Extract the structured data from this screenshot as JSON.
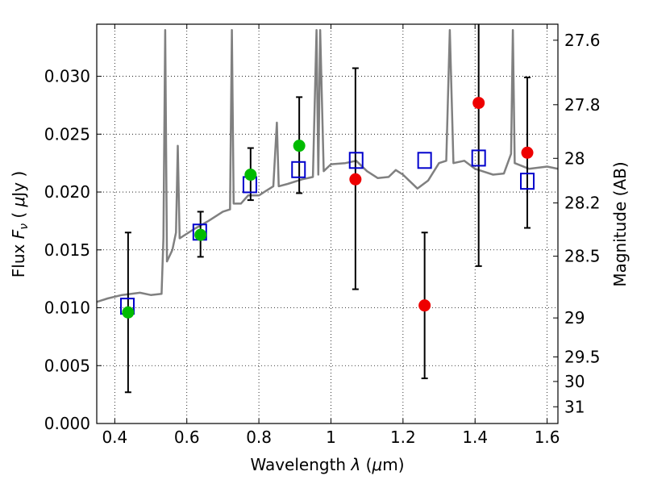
{
  "chart_data": {
    "type": "scatter",
    "xlabel": "Wavelength  λ (μm)",
    "ylabel_left": "Flux  F_ν  ( μJy )",
    "ylabel_right": "Magnitude (AB)",
    "xlim": [
      0.35,
      1.63
    ],
    "ylim": [
      0.0,
      0.0345
    ],
    "grid": true,
    "x_ticks": [
      0.4,
      0.6,
      0.8,
      1.0,
      1.2,
      1.4,
      1.6
    ],
    "x_tick_labels": [
      "0.4",
      "0.6",
      "0.8",
      "1",
      "1.2",
      "1.4",
      "1.6"
    ],
    "y_ticks": [
      0.0,
      0.005,
      0.01,
      0.015,
      0.02,
      0.025,
      0.03
    ],
    "y_tick_labels": [
      "0.000",
      "0.005",
      "0.010",
      "0.015",
      "0.020",
      "0.025",
      "0.030"
    ],
    "right_ticks": [
      {
        "label": "27.6",
        "mag": 27.6
      },
      {
        "label": "27.8",
        "mag": 27.8
      },
      {
        "label": "28",
        "mag": 28.0
      },
      {
        "label": "28.2",
        "mag": 28.2
      },
      {
        "label": "28.5",
        "mag": 28.5
      },
      {
        "label": "29",
        "mag": 29.0
      },
      {
        "label": "29.5",
        "mag": 29.5
      },
      {
        "label": "30",
        "mag": 30.0
      },
      {
        "label": "31",
        "mag": 31.0
      }
    ],
    "colors": {
      "sed": "#808080",
      "model": "#0000cc",
      "optical": "#00bb00",
      "nir": "#ee0000",
      "errorbar": "#000000"
    },
    "model_sed": [
      [
        0.35,
        0.0105
      ],
      [
        0.38,
        0.0108
      ],
      [
        0.42,
        0.0111
      ],
      [
        0.47,
        0.0113
      ],
      [
        0.5,
        0.0111
      ],
      [
        0.53,
        0.0112
      ],
      [
        0.535,
        0.016
      ],
      [
        0.54,
        0.034
      ],
      [
        0.545,
        0.014
      ],
      [
        0.56,
        0.015
      ],
      [
        0.57,
        0.0165
      ],
      [
        0.575,
        0.024
      ],
      [
        0.58,
        0.016
      ],
      [
        0.62,
        0.0168
      ],
      [
        0.66,
        0.0175
      ],
      [
        0.7,
        0.0183
      ],
      [
        0.72,
        0.0185
      ],
      [
        0.725,
        0.034
      ],
      [
        0.73,
        0.019
      ],
      [
        0.75,
        0.019
      ],
      [
        0.77,
        0.0197
      ],
      [
        0.8,
        0.0197
      ],
      [
        0.82,
        0.0201
      ],
      [
        0.84,
        0.0205
      ],
      [
        0.85,
        0.026
      ],
      [
        0.855,
        0.0205
      ],
      [
        0.88,
        0.0207
      ],
      [
        0.92,
        0.0211
      ],
      [
        0.95,
        0.0213
      ],
      [
        0.96,
        0.034
      ],
      [
        0.965,
        0.0215
      ],
      [
        0.97,
        0.034
      ],
      [
        0.98,
        0.0218
      ],
      [
        1.0,
        0.0224
      ],
      [
        1.04,
        0.0225
      ],
      [
        1.07,
        0.0227
      ],
      [
        1.1,
        0.0218
      ],
      [
        1.13,
        0.0212
      ],
      [
        1.16,
        0.0213
      ],
      [
        1.18,
        0.0219
      ],
      [
        1.2,
        0.0215
      ],
      [
        1.24,
        0.0203
      ],
      [
        1.27,
        0.021
      ],
      [
        1.3,
        0.0225
      ],
      [
        1.32,
        0.0227
      ],
      [
        1.33,
        0.034
      ],
      [
        1.34,
        0.0225
      ],
      [
        1.37,
        0.0227
      ],
      [
        1.4,
        0.022
      ],
      [
        1.42,
        0.0218
      ],
      [
        1.45,
        0.0215
      ],
      [
        1.48,
        0.0216
      ],
      [
        1.5,
        0.0233
      ],
      [
        1.505,
        0.034
      ],
      [
        1.51,
        0.0225
      ],
      [
        1.55,
        0.022
      ],
      [
        1.6,
        0.0222
      ],
      [
        1.63,
        0.022
      ]
    ],
    "model_points": [
      {
        "x": 0.435,
        "y": 0.0101
      },
      {
        "x": 0.636,
        "y": 0.0165
      },
      {
        "x": 0.775,
        "y": 0.0206
      },
      {
        "x": 0.91,
        "y": 0.0219
      },
      {
        "x": 1.07,
        "y": 0.0227
      },
      {
        "x": 1.26,
        "y": 0.0227
      },
      {
        "x": 1.41,
        "y": 0.0229
      },
      {
        "x": 1.545,
        "y": 0.0209
      }
    ],
    "observed_points": [
      {
        "x": 0.437,
        "y": 0.0096,
        "yerr_low": 0.0027,
        "yerr_high": 0.0165,
        "group": "optical"
      },
      {
        "x": 0.638,
        "y": 0.0163,
        "yerr_low": 0.0144,
        "yerr_high": 0.0183,
        "group": "optical"
      },
      {
        "x": 0.777,
        "y": 0.0215,
        "yerr_low": 0.0193,
        "yerr_high": 0.0238,
        "group": "optical"
      },
      {
        "x": 0.912,
        "y": 0.024,
        "yerr_low": 0.0199,
        "yerr_high": 0.0282,
        "group": "optical"
      },
      {
        "x": 1.068,
        "y": 0.0211,
        "yerr_low": 0.0116,
        "yerr_high": 0.0307,
        "group": "nir"
      },
      {
        "x": 1.26,
        "y": 0.0102,
        "yerr_low": 0.0039,
        "yerr_high": 0.0165,
        "group": "nir"
      },
      {
        "x": 1.41,
        "y": 0.0277,
        "yerr_low": 0.0136,
        "yerr_high": 0.0345,
        "group": "nir"
      },
      {
        "x": 1.545,
        "y": 0.0234,
        "yerr_low": 0.0169,
        "yerr_high": 0.0299,
        "group": "nir"
      }
    ]
  }
}
